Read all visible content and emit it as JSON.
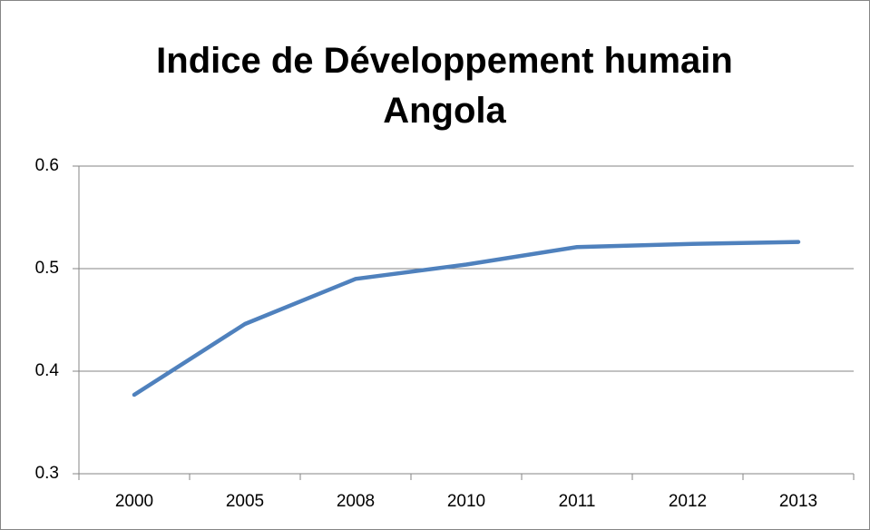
{
  "chart_data": {
    "type": "line",
    "title": "Indice de Développement humain Angola",
    "categories": [
      "2000",
      "2005",
      "2008",
      "2010",
      "2011",
      "2012",
      "2013"
    ],
    "series": [
      {
        "name": "Angola",
        "color": "#4f81bd",
        "values": [
          0.377,
          0.446,
          0.49,
          0.504,
          0.521,
          0.524,
          0.526
        ]
      }
    ],
    "ylim": [
      0.3,
      0.6
    ],
    "yticks": [
      0.3,
      0.4,
      0.5,
      0.6
    ],
    "grid": true
  }
}
